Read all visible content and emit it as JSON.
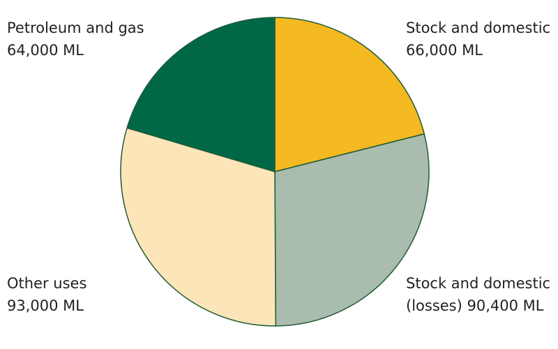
{
  "chart_data": {
    "type": "pie",
    "categories": [
      "Stock and domestic",
      "Stock and domestic (losses)",
      "Other uses",
      "Petroleum and gas"
    ],
    "values": [
      66000,
      90400,
      93000,
      64000
    ],
    "value_labels": [
      "66,000 ML",
      "90,400 ML",
      "93,000 ML",
      "64,000 ML"
    ],
    "colors": [
      "#f5b921",
      "#a9bcae",
      "#fce5b8",
      "#006847"
    ]
  }
}
